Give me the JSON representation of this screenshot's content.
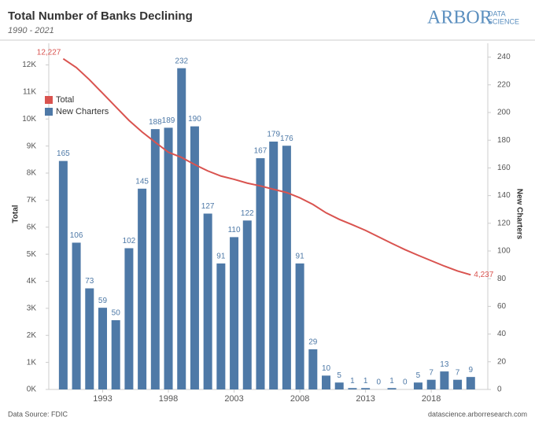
{
  "chart_data": {
    "type": "bar",
    "title": "Total Number of Banks Declining",
    "subtitle": "1990 - 2021",
    "ylabel": "Total",
    "y2label": "New Charters",
    "x": [
      1990,
      1991,
      1992,
      1993,
      1994,
      1995,
      1996,
      1997,
      1998,
      1999,
      2000,
      2001,
      2002,
      2003,
      2004,
      2005,
      2006,
      2007,
      2008,
      2009,
      2010,
      2011,
      2012,
      2013,
      2014,
      2015,
      2016,
      2017,
      2018,
      2019,
      2020,
      2021
    ],
    "xlim": [
      1988.9,
      2022.3
    ],
    "xticks": [
      1993,
      1998,
      2003,
      2008,
      2013,
      2018
    ],
    "ylim": [
      0,
      12800
    ],
    "yticks": [
      {
        "value": 0,
        "label": "0K"
      },
      {
        "value": 1000,
        "label": "1K"
      },
      {
        "value": 2000,
        "label": "2K"
      },
      {
        "value": 3000,
        "label": "3K"
      },
      {
        "value": 4000,
        "label": "4K"
      },
      {
        "value": 5000,
        "label": "5K"
      },
      {
        "value": 6000,
        "label": "6K"
      },
      {
        "value": 7000,
        "label": "7K"
      },
      {
        "value": 8000,
        "label": "8K"
      },
      {
        "value": 9000,
        "label": "9K"
      },
      {
        "value": 10000,
        "label": "10K"
      },
      {
        "value": 11000,
        "label": "11K"
      },
      {
        "value": 12000,
        "label": "12K"
      }
    ],
    "y2lim": [
      0,
      250
    ],
    "y2ticks": [
      0,
      20,
      40,
      60,
      80,
      100,
      120,
      140,
      160,
      180,
      200,
      220,
      240
    ],
    "legend": "top-left",
    "series": [
      {
        "name": "Total",
        "type": "line",
        "axis": "y",
        "color": "#d9534f",
        "values": [
          12227,
          11900,
          11450,
          10950,
          10450,
          9950,
          9520,
          9140,
          8770,
          8580,
          8315,
          8080,
          7890,
          7770,
          7630,
          7525,
          7400,
          7280,
          7086,
          6840,
          6530,
          6290,
          6090,
          5880,
          5640,
          5400,
          5170,
          4960,
          4760,
          4560,
          4380,
          4237
        ],
        "value_labels": [
          "12,227",
          null,
          null,
          null,
          null,
          null,
          null,
          null,
          null,
          null,
          null,
          null,
          null,
          null,
          null,
          null,
          null,
          null,
          null,
          null,
          null,
          null,
          null,
          null,
          null,
          null,
          null,
          null,
          null,
          null,
          null,
          "4,237"
        ]
      },
      {
        "name": "New Charters",
        "type": "bar",
        "axis": "y2",
        "color": "#4e79a7",
        "values": [
          165,
          106,
          73,
          59,
          50,
          102,
          145,
          188,
          189,
          232,
          190,
          127,
          91,
          110,
          122,
          167,
          179,
          176,
          91,
          29,
          10,
          5,
          1,
          1,
          0,
          1,
          0,
          5,
          7,
          13,
          7,
          9
        ]
      }
    ]
  },
  "logo": {
    "main": "ARBOR",
    "line1": "DATA",
    "line2": "SCIENCE"
  },
  "footer": {
    "source": "Data Source: FDIC",
    "site": "datascience.arborresearch.com"
  }
}
